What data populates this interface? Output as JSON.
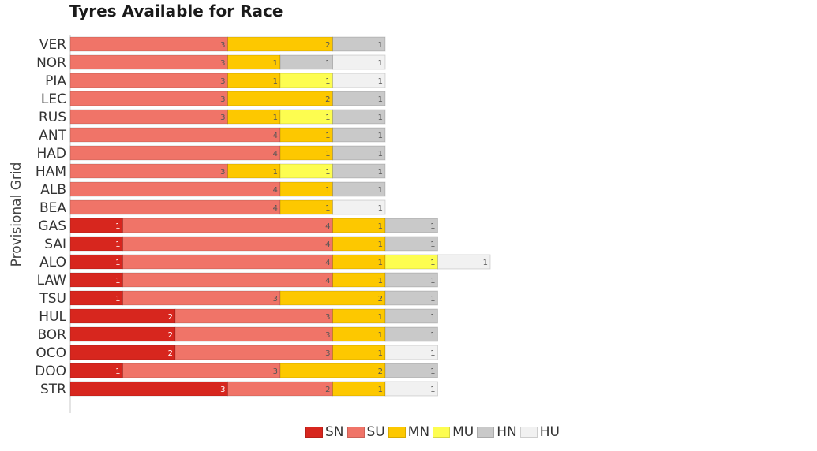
{
  "chart_data": {
    "type": "bar",
    "orientation": "horizontal",
    "stacked": true,
    "title": "Tyres Available for Race",
    "ylabel": "Provisional Grid",
    "xlabel": "",
    "xlim": [
      0,
      14
    ],
    "legend_position": "bottom",
    "grid": false,
    "categories": [
      "VER",
      "NOR",
      "PIA",
      "LEC",
      "RUS",
      "ANT",
      "HAD",
      "HAM",
      "ALB",
      "BEA",
      "GAS",
      "SAI",
      "ALO",
      "LAW",
      "TSU",
      "HUL",
      "BOR",
      "OCO",
      "DOO",
      "STR"
    ],
    "series": [
      {
        "name": "SN",
        "color": "#d7261e",
        "values": [
          0,
          0,
          0,
          0,
          0,
          0,
          0,
          0,
          0,
          0,
          1,
          1,
          1,
          1,
          1,
          2,
          2,
          2,
          1,
          3
        ]
      },
      {
        "name": "SU",
        "color": "#f07468",
        "values": [
          3,
          3,
          3,
          3,
          3,
          4,
          4,
          3,
          4,
          4,
          4,
          4,
          4,
          4,
          3,
          3,
          3,
          3,
          3,
          2
        ]
      },
      {
        "name": "MN",
        "color": "#fdc800",
        "values": [
          2,
          1,
          1,
          2,
          1,
          1,
          1,
          1,
          1,
          1,
          1,
          1,
          1,
          1,
          2,
          1,
          1,
          1,
          2,
          1
        ]
      },
      {
        "name": "MU",
        "color": "#fdfd50",
        "values": [
          0,
          0,
          1,
          0,
          1,
          0,
          0,
          1,
          0,
          0,
          0,
          0,
          1,
          0,
          0,
          0,
          0,
          0,
          0,
          0
        ]
      },
      {
        "name": "HN",
        "color": "#c9c9c9",
        "values": [
          1,
          1,
          0,
          1,
          1,
          1,
          1,
          1,
          1,
          0,
          1,
          1,
          0,
          1,
          1,
          1,
          1,
          0,
          1,
          0
        ]
      },
      {
        "name": "HU",
        "color": "#f1f1f1",
        "values": [
          0,
          1,
          1,
          0,
          0,
          0,
          0,
          0,
          0,
          1,
          0,
          0,
          1,
          0,
          0,
          0,
          0,
          1,
          0,
          1
        ]
      }
    ]
  }
}
